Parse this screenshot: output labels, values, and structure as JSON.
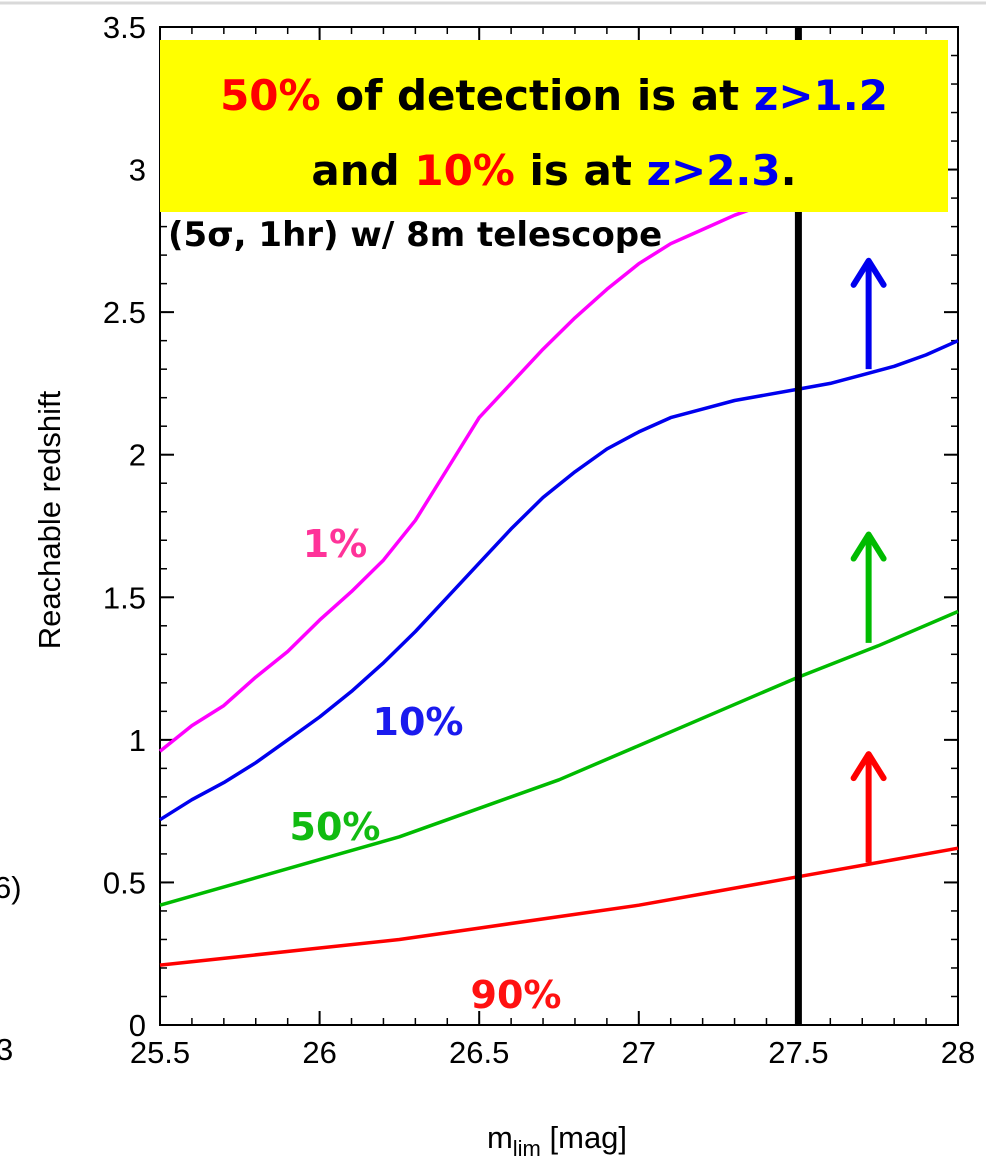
{
  "chart_data": {
    "type": "line",
    "xlabel_main": "m",
    "xlabel_sub": "lim",
    "xlabel_unit": " [mag]",
    "ylabel": "Reachable redshift",
    "xlim": [
      25.5,
      28
    ],
    "ylim": [
      0,
      3.5
    ],
    "x_ticks": [
      25.5,
      26,
      26.5,
      27,
      27.5,
      28
    ],
    "x_tick_labels": [
      "25.5",
      "26",
      "26.5",
      "27",
      "27.5",
      "28"
    ],
    "y_ticks": [
      0,
      0.5,
      1,
      1.5,
      2,
      2.5,
      3,
      3.5
    ],
    "y_tick_labels": [
      "0",
      "0.5",
      "1",
      "1.5",
      "2",
      "2.5",
      "3",
      "3.5"
    ],
    "x_minor_step": 0.1,
    "y_minor_step": 0.1,
    "grid": false,
    "limit_line": {
      "x": 27.5,
      "color": "#000000"
    },
    "series": [
      {
        "label": "1%",
        "color": "#ff00ff",
        "label_color": "#ff3399",
        "x": [
          25.5,
          25.6,
          25.7,
          25.8,
          25.9,
          26.0,
          26.1,
          26.2,
          26.3,
          26.4,
          26.5,
          26.6,
          26.7,
          26.8,
          26.9,
          27.0,
          27.1,
          27.2,
          27.3,
          27.4,
          27.5
        ],
        "y": [
          0.96,
          1.05,
          1.12,
          1.22,
          1.31,
          1.42,
          1.52,
          1.63,
          1.77,
          1.95,
          2.13,
          2.25,
          2.37,
          2.48,
          2.58,
          2.67,
          2.74,
          2.79,
          2.84,
          2.88,
          2.91
        ]
      },
      {
        "label": "10%",
        "color": "#0000ee",
        "label_color": "#1a1aee",
        "x": [
          25.5,
          25.6,
          25.7,
          25.8,
          25.9,
          26.0,
          26.1,
          26.2,
          26.3,
          26.4,
          26.5,
          26.6,
          26.7,
          26.8,
          26.9,
          27.0,
          27.1,
          27.2,
          27.3,
          27.4,
          27.5,
          27.6,
          27.7,
          27.8,
          27.9,
          28.0
        ],
        "y": [
          0.72,
          0.79,
          0.85,
          0.92,
          1.0,
          1.08,
          1.17,
          1.27,
          1.38,
          1.5,
          1.62,
          1.74,
          1.85,
          1.94,
          2.02,
          2.08,
          2.13,
          2.16,
          2.19,
          2.21,
          2.23,
          2.25,
          2.28,
          2.31,
          2.35,
          2.4
        ]
      },
      {
        "label": "50%",
        "color": "#00bb00",
        "label_color": "#11bb11",
        "x": [
          25.5,
          25.75,
          26.0,
          26.25,
          26.5,
          26.75,
          27.0,
          27.25,
          27.5,
          27.75,
          28.0
        ],
        "y": [
          0.42,
          0.5,
          0.58,
          0.66,
          0.76,
          0.86,
          0.98,
          1.1,
          1.22,
          1.33,
          1.45
        ]
      },
      {
        "label": "90%",
        "color": "#ff0000",
        "label_color": "#ff1111",
        "x": [
          25.5,
          25.75,
          26.0,
          26.25,
          26.5,
          26.75,
          27.0,
          27.25,
          27.5,
          27.75,
          28.0
        ],
        "y": [
          0.21,
          0.24,
          0.27,
          0.3,
          0.34,
          0.38,
          0.42,
          0.47,
          0.52,
          0.57,
          0.62
        ]
      }
    ],
    "arrows": [
      {
        "x": 27.72,
        "y_from": 2.3,
        "y_to": 2.68,
        "color": "#0000ee"
      },
      {
        "x": 27.72,
        "y_from": 1.34,
        "y_to": 1.72,
        "color": "#00bb00"
      },
      {
        "x": 27.72,
        "y_from": 0.57,
        "y_to": 0.95,
        "color": "#ff0000"
      }
    ]
  },
  "callout": {
    "line1": [
      {
        "text": "50%",
        "color": "#ff0000"
      },
      {
        "text": " of detection is at ",
        "color": "#000000"
      },
      {
        "text": "z>1.2",
        "color": "#0000ee"
      }
    ],
    "line2": [
      {
        "text": "and ",
        "color": "#000000"
      },
      {
        "text": "10%",
        "color": "#ff0000"
      },
      {
        "text": " is at ",
        "color": "#000000"
      },
      {
        "text": "z>2.3",
        "color": "#0000ee"
      },
      {
        "text": ".",
        "color": "#000000"
      }
    ],
    "background": "#ffff00"
  },
  "subtitle": "(5σ, 1hr) w/ 8m telescope",
  "cropped_left": {
    "fragment_1": "6)",
    "fragment_2": "3"
  }
}
